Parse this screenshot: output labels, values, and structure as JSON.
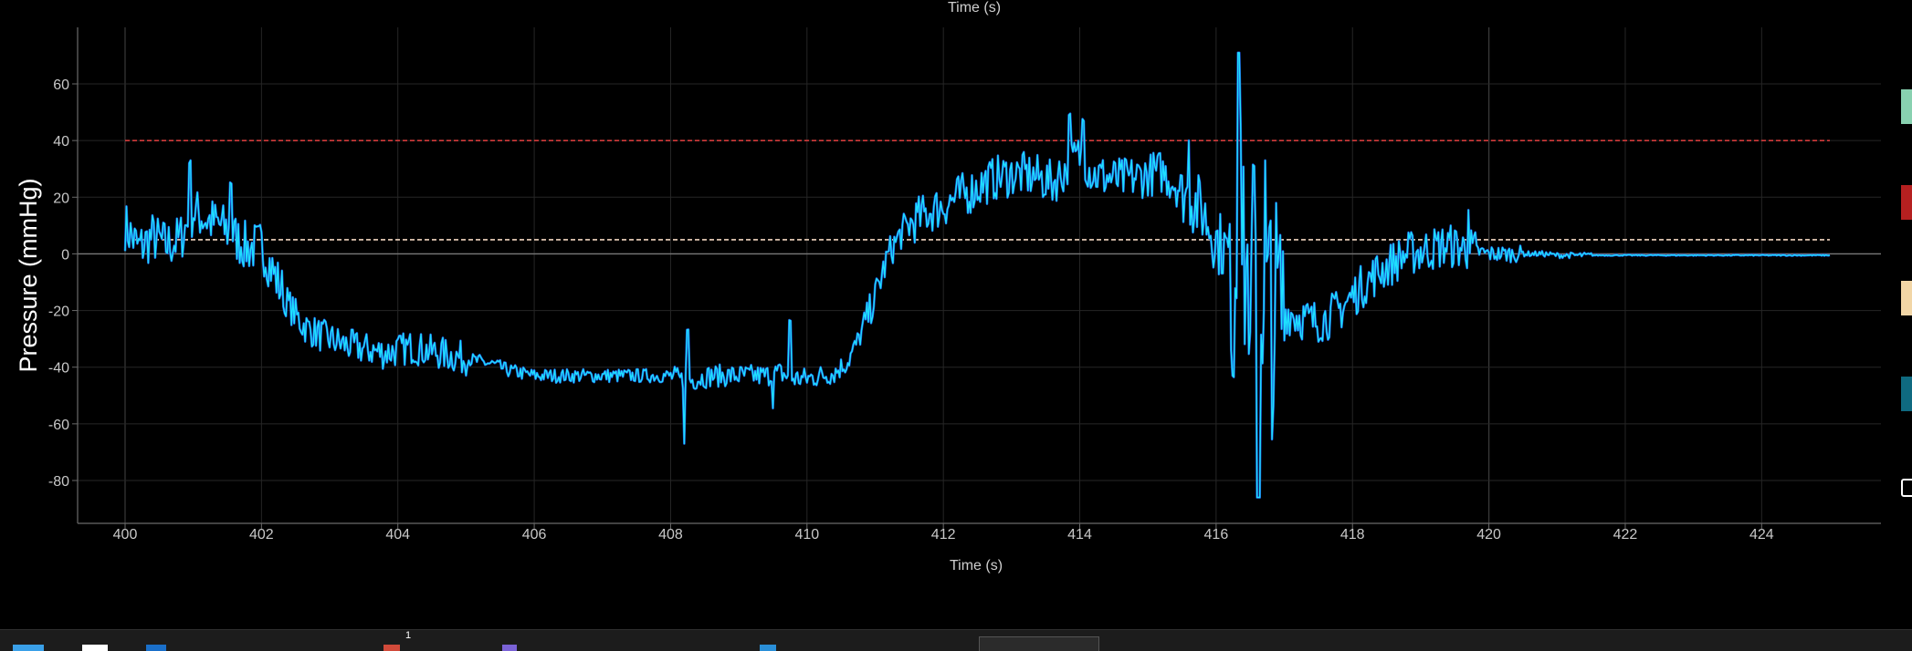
{
  "chart_data": {
    "type": "line",
    "title": "",
    "top_axis_label": "Time (s)",
    "xlabel": "Time (s)",
    "ylabel": "Pressure (mmHg)",
    "xlim": [
      399.4,
      425.7
    ],
    "ylim": [
      -95,
      80
    ],
    "x_ticks": [
      "400",
      "402",
      "404",
      "406",
      "408",
      "410",
      "412",
      "414",
      "416",
      "418",
      "420",
      "422",
      "424"
    ],
    "y_ticks": [
      "60",
      "40",
      "20",
      "0",
      "-20",
      "-40",
      "-60",
      "-80"
    ],
    "grid": true,
    "colors": {
      "trace": "#1ee0ff",
      "trace_shadow": "#1d4fd6",
      "upper_threshold": "#d23b3b",
      "lower_threshold": "#f2d6c0",
      "zero_line": "#777777",
      "grid": "#262626",
      "axes": "#6a6a6a"
    },
    "thresholds": [
      {
        "value": 40,
        "color": "#d23b3b",
        "style": "dashed"
      },
      {
        "value": 5,
        "color": "#f2d6c0",
        "style": "dashed"
      }
    ],
    "series": [
      {
        "x": [
          400.0,
          400.2,
          400.4,
          400.6,
          400.8,
          401.0,
          401.2,
          401.4,
          401.6,
          401.8,
          402.0,
          402.2,
          402.4,
          402.6,
          402.8,
          403.0,
          403.2,
          403.4,
          403.6,
          403.8,
          404.0,
          404.2,
          404.4,
          404.6,
          404.8,
          405.0,
          405.2,
          405.4,
          405.6,
          405.8,
          406.0,
          406.5,
          407.0,
          407.5,
          408.0,
          408.2,
          408.4,
          408.6,
          409.0,
          409.4,
          409.6,
          409.8,
          410.0,
          410.2,
          410.4,
          410.6,
          410.8,
          411.0,
          411.2,
          411.4,
          411.6,
          411.8,
          412.0,
          412.2,
          412.4,
          412.6,
          412.8,
          413.0,
          413.2,
          413.4,
          413.6,
          413.8,
          414.0,
          414.2,
          414.4,
          414.6,
          414.8,
          415.0,
          415.2,
          415.4,
          415.6,
          415.8,
          416.0,
          416.2,
          416.4,
          416.6,
          416.8,
          417.0,
          417.2,
          417.4,
          417.6,
          417.8,
          418.0,
          418.2,
          418.4,
          418.6,
          418.8,
          419.0,
          419.2,
          419.4,
          419.6,
          419.8,
          420.0,
          420.2,
          420.4,
          420.6,
          420.8,
          421.0,
          421.5,
          422.0,
          422.5,
          423.0,
          423.5,
          424.0,
          424.5,
          425.0
        ],
        "y": [
          10,
          2,
          6,
          3,
          5,
          15,
          12,
          10,
          6,
          2,
          3,
          -8,
          -18,
          -25,
          -28,
          -30,
          -32,
          -33,
          -34,
          -35,
          -34,
          -33,
          -34,
          -35,
          -36,
          -37,
          -38,
          -39,
          -41,
          -42,
          -43,
          -43,
          -43,
          -43,
          -43,
          -45,
          -44,
          -43,
          -43,
          -43,
          -42,
          -44,
          -44,
          -43,
          -42,
          -38,
          -28,
          -15,
          0,
          8,
          12,
          15,
          17,
          20,
          22,
          25,
          27,
          28,
          28,
          27,
          25,
          30,
          35,
          28,
          27,
          26,
          27,
          28,
          29,
          25,
          20,
          15,
          5,
          0,
          -5,
          -10,
          -15,
          -20,
          -22,
          -24,
          -23,
          -20,
          -15,
          -10,
          -6,
          -3,
          0,
          1,
          2,
          3,
          2,
          1,
          0,
          0,
          0,
          0,
          0,
          -0.5,
          -0.5,
          -0.5,
          -0.5,
          -0.5,
          -0.5,
          -0.5,
          -0.5,
          -0.5
        ]
      }
    ]
  },
  "legend": {
    "swatches": [
      {
        "color": "#88d1b0"
      },
      {
        "color": "#b52020"
      },
      {
        "color": "#f2d6a6"
      },
      {
        "color": "#0f6a80"
      },
      {
        "color": "#ffffff"
      }
    ]
  },
  "taskbar": {
    "items": [
      {
        "icon": "windows-start-icon",
        "color": "#3aa0e8"
      },
      {
        "icon": "file-icon",
        "color": "#ffffff"
      },
      {
        "icon": "app-icon",
        "color": "#1a6fc9"
      },
      {
        "icon": "notification-app-icon",
        "color": "#d14a3a"
      },
      {
        "icon": "pen-app-icon",
        "color": "#7a62d6"
      },
      {
        "icon": "diamond-app-icon",
        "color": "#2a8fd8"
      },
      {
        "icon": "active-window-icon",
        "color": "#cfcfcf"
      }
    ],
    "badge": "1"
  }
}
